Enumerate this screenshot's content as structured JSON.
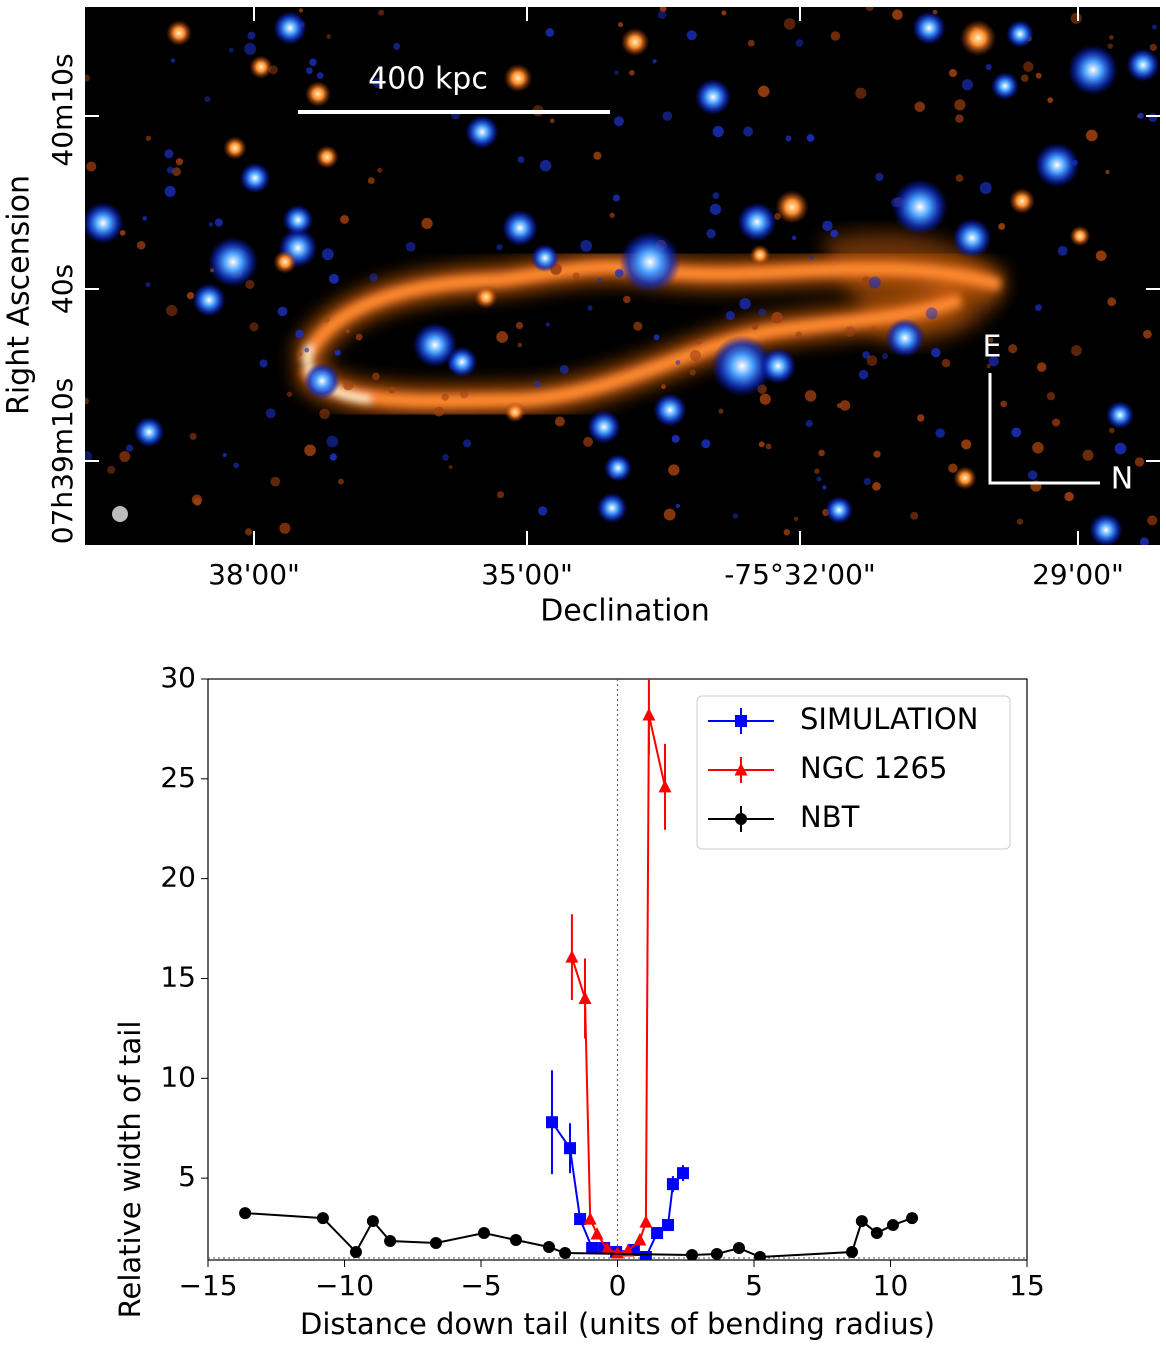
{
  "chart_data": [
    {
      "type": "image",
      "xlabel": "Declination",
      "ylabel": "Right Ascension",
      "xtick_labels": [
        "38'00\"",
        "35'00\"",
        "-75°32'00\"",
        "29'00\""
      ],
      "ytick_labels": [
        "40m10s",
        "40s",
        "07h39m10s"
      ],
      "annotations": [
        "400 kpc",
        "E",
        "N"
      ]
    },
    {
      "type": "line",
      "xlabel": "Distance down tail (units of bending radius)",
      "ylabel": "Relative width of tail",
      "xlim": [
        -15,
        15
      ],
      "ylim": [
        0.9,
        30
      ],
      "xticks": [
        {
          "value": -15,
          "label": "−15"
        },
        {
          "value": -10,
          "label": "−10"
        },
        {
          "value": -5,
          "label": "−5"
        },
        0,
        5,
        10,
        15
      ],
      "yticks": [
        5,
        10,
        15,
        20,
        25,
        30
      ],
      "reference_lines": {
        "x": 0,
        "y": 1
      },
      "legend": "upper right",
      "series": [
        {
          "name": "SIMULATION",
          "color": "#0000ff",
          "marker": "square",
          "x": [
            -2.4,
            -1.74,
            -1.37,
            -0.93,
            -0.49,
            -0.05,
            0.6,
            1.04,
            1.45,
            1.85,
            2.03,
            2.4
          ],
          "values": [
            7.8,
            6.5,
            2.95,
            1.5,
            1.5,
            1.3,
            1.4,
            1.05,
            2.25,
            2.65,
            4.7,
            5.25
          ],
          "errors": [
            2.6,
            1.25,
            0.2,
            0.2,
            0.2,
            0.15,
            0.15,
            0.1,
            0.2,
            0.2,
            0.4,
            0.4
          ]
        },
        {
          "name": "NGC 1265",
          "color": "#ff0000",
          "marker": "triangle",
          "x": [
            -1.67,
            -1.19,
            -1.0,
            -0.75,
            -0.38,
            0,
            0.38,
            0.82,
            1.04,
            1.15,
            1.74
          ],
          "values": [
            16.07,
            14.0,
            2.95,
            2.2,
            1.45,
            1.25,
            1.35,
            1.9,
            2.8,
            28.2,
            24.6
          ],
          "errors": [
            2.15,
            2.0,
            0.2,
            0.15,
            0.1,
            0.1,
            0.1,
            0.15,
            0.2,
            2.0,
            2.15
          ]
        },
        {
          "name": "NBT",
          "color": "#000000",
          "marker": "circle",
          "x": [
            -13.64,
            -10.79,
            -9.58,
            -8.96,
            -8.33,
            -6.65,
            -4.89,
            -3.72,
            -2.51,
            -1.92,
            2.73,
            3.64,
            4.45,
            5.22,
            8.59,
            8.95,
            9.5,
            10.09,
            10.79
          ],
          "values": [
            3.25,
            3.0,
            1.3,
            2.85,
            1.85,
            1.75,
            2.25,
            1.9,
            1.55,
            1.25,
            1.15,
            1.2,
            1.5,
            1.05,
            1.3,
            2.85,
            2.25,
            2.65,
            3.0
          ]
        }
      ]
    }
  ]
}
